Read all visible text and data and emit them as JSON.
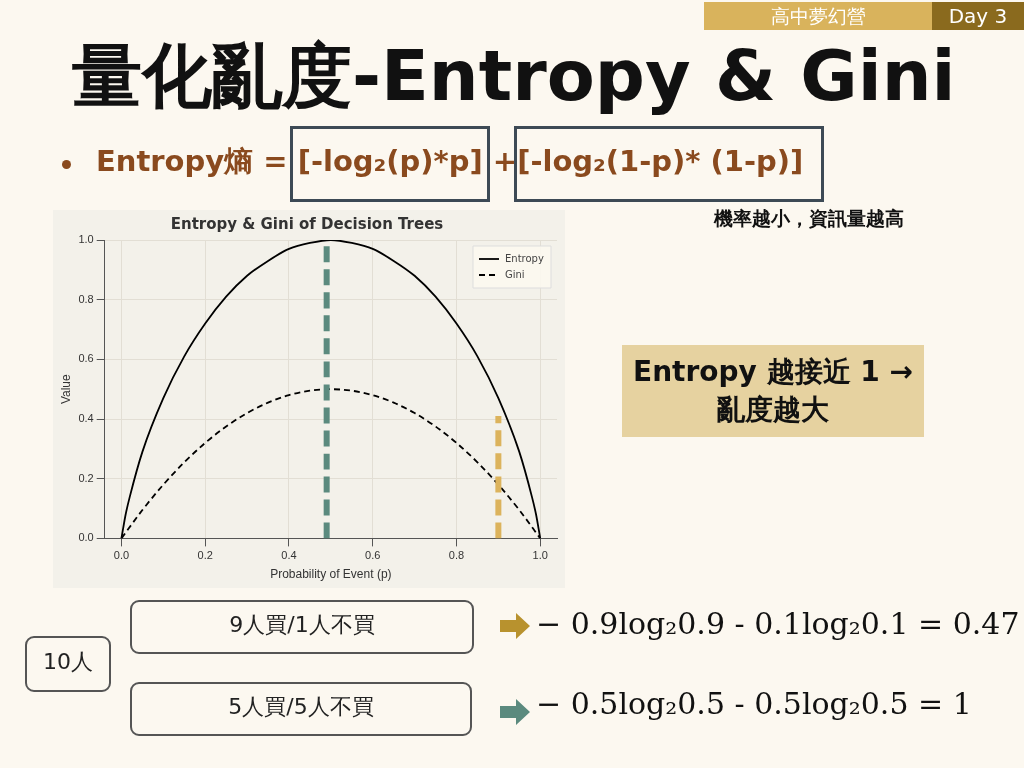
{
  "chart_data": {
    "type": "line",
    "title": "Entropy & Gini of Decision Trees",
    "xlabel": "Probability of Event (p)",
    "ylabel": "Value",
    "xlim": [
      -0.04,
      1.04
    ],
    "ylim": [
      0,
      1
    ],
    "xticks": [
      {
        "value": 0,
        "label": "0.0"
      },
      {
        "value": 0.2,
        "label": "0.2"
      },
      {
        "value": 0.4,
        "label": "0.4"
      },
      {
        "value": 0.6,
        "label": "0.6"
      },
      {
        "value": 0.8,
        "label": "0.8"
      },
      {
        "value": 1,
        "label": "1.0"
      }
    ],
    "yticks": [
      {
        "value": 0,
        "label": "0.0"
      },
      {
        "value": 0.2,
        "label": "0.2"
      },
      {
        "value": 0.4,
        "label": "0.4"
      },
      {
        "value": 0.6,
        "label": "0.6"
      },
      {
        "value": 0.8,
        "label": "0.8"
      },
      {
        "value": 1,
        "label": "1.0"
      }
    ],
    "grid": true,
    "legend": "top right",
    "marker": "none",
    "series": [
      {
        "name": "Entropy",
        "color": "#000000",
        "line_style": "solid",
        "x": [
          0,
          0.01,
          0.02,
          0.05,
          0.1,
          0.15,
          0.2,
          0.25,
          0.3,
          0.35,
          0.4,
          0.45,
          0.5,
          0.55,
          0.6,
          0.65,
          0.7,
          0.75,
          0.8,
          0.85,
          0.9,
          0.95,
          0.98,
          0.99,
          1
        ],
        "values": [
          0,
          0.08,
          0.14,
          0.29,
          0.47,
          0.61,
          0.72,
          0.81,
          0.88,
          0.93,
          0.97,
          0.99,
          1,
          0.99,
          0.97,
          0.93,
          0.88,
          0.81,
          0.72,
          0.61,
          0.47,
          0.29,
          0.14,
          0.08,
          0
        ]
      },
      {
        "name": "Gini",
        "color": "#000000",
        "line_style": "dashed",
        "x": [
          0,
          0.05,
          0.1,
          0.15,
          0.2,
          0.25,
          0.3,
          0.35,
          0.4,
          0.45,
          0.5,
          0.55,
          0.6,
          0.65,
          0.7,
          0.75,
          0.8,
          0.85,
          0.9,
          0.95,
          1
        ],
        "values": [
          0,
          0.095,
          0.18,
          0.255,
          0.32,
          0.375,
          0.42,
          0.455,
          0.48,
          0.495,
          0.5,
          0.495,
          0.48,
          0.455,
          0.42,
          0.375,
          0.32,
          0.255,
          0.18,
          0.095,
          0
        ]
      },
      {
        "color": "#5b8a7e",
        "line_style": "dashed",
        "x": [
          0.49,
          0.49
        ],
        "values": [
          0,
          1
        ]
      },
      {
        "color": "#dcb35c",
        "line_style": "dashed",
        "x": [
          0.9,
          0.9
        ],
        "values": [
          0,
          0.41
        ]
      }
    ],
    "annotations": [
      "Day 3",
      "高中夢幻營",
      "量化亂度-Entropy & Gini",
      "Entropy熵 = [-log₂(p)*p] +[-log₂(1-p)* (1-p)]",
      "機率越小，資訊量越高",
      "Entropy 越接近 1 → 亂度越大",
      "10人",
      "9人買/1人不買",
      "5人買/5人不買",
      "− 0.9log₂0.9 - 0.1log₂0.1 = 0.47",
      "− 0.5log₂0.5 - 0.5log₂0.5 = 1"
    ]
  }
}
